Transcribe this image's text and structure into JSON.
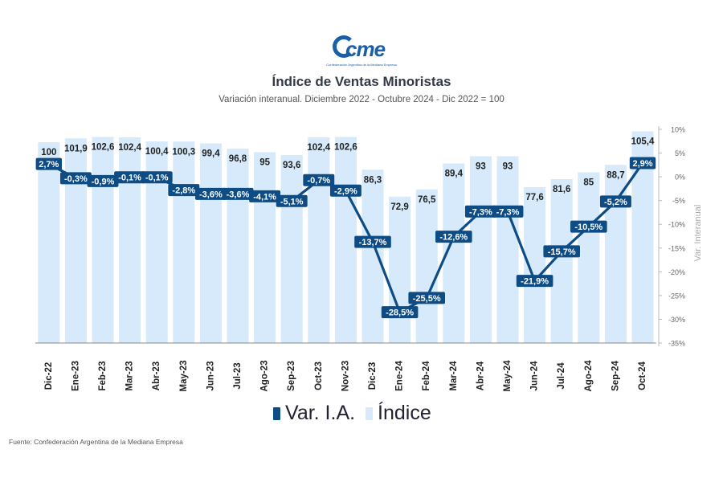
{
  "logo": {
    "word": "cme",
    "tagline": "Confederación Argentina de la Mediana Empresa"
  },
  "title": "Índice de Ventas Minoristas",
  "subtitle": "Variación interanual. Diciembre 2022 - Octubre 2024 - Dic 2022 = 100",
  "source": "Fuente: Confederación Argentina de la Mediana Empresa",
  "colors": {
    "bar": "#d6eafb",
    "line": "#0e4c86",
    "label_box": "#0e4c86",
    "text": "#222222"
  },
  "chart_data": {
    "type": "bar",
    "categories": [
      "Dic-22",
      "Ene-23",
      "Feb-23",
      "Mar-23",
      "Abr-23",
      "May-23",
      "Jun-23",
      "Jul-23",
      "Ago-23",
      "Sep-23",
      "Oct-23",
      "Nov-23",
      "Dic-23",
      "Ene-24",
      "Feb-24",
      "Mar-24",
      "Abr-24",
      "May-24",
      "Jun-24",
      "Jul-24",
      "Ago-24",
      "Sep-24",
      "Oct-24"
    ],
    "series": [
      {
        "name": "Índice",
        "type": "bar",
        "axis": "left",
        "values": [
          100,
          101.9,
          102.6,
          102.4,
          100.4,
          100.3,
          99.4,
          96.8,
          95,
          93.6,
          102.4,
          102.6,
          86.3,
          72.9,
          76.5,
          89.4,
          93,
          93,
          77.6,
          81.6,
          85,
          88.7,
          105.4
        ],
        "labels": [
          "100",
          "101,9",
          "102,6",
          "102,4",
          "100,4",
          "100,3",
          "99,4",
          "96,8",
          "95",
          "93,6",
          "102,4",
          "102,6",
          "86,3",
          "72,9",
          "76,5",
          "89,4",
          "93",
          "93",
          "77,6",
          "81,6",
          "85",
          "88,7",
          "105,4"
        ]
      },
      {
        "name": "Var. I.A.",
        "type": "line",
        "axis": "right",
        "values": [
          2.7,
          -0.3,
          -0.9,
          -0.1,
          -0.1,
          -2.8,
          -3.6,
          -3.6,
          -4.1,
          -5.1,
          -0.7,
          -2.9,
          -13.7,
          -28.5,
          -25.5,
          -12.6,
          -7.3,
          -7.3,
          -21.9,
          -15.7,
          -10.5,
          -5.2,
          2.9
        ],
        "labels": [
          "2,7%",
          "-0,3%",
          "-0,9%",
          "-0,1%",
          "-0,1%",
          "-2,8%",
          "-3,6%",
          "-3,6%",
          "-4,1%",
          "-5,1%",
          "-0,7%",
          "-2,9%",
          "-13,7%",
          "-28,5%",
          "-25,5%",
          "-12,6%",
          "-7,3%",
          "-7,3%",
          "-21,9%",
          "-15,7%",
          "-10,5%",
          "-5,2%",
          "2,9%"
        ]
      }
    ],
    "y_right": {
      "label": "Var. Interanual",
      "range": [
        -35,
        10
      ],
      "ticks": [
        10,
        5,
        0,
        -5,
        -10,
        -15,
        -20,
        -25,
        -30,
        -35
      ],
      "tick_labels": [
        "10%",
        "5%",
        "0%",
        "-5%",
        "-10%",
        "-15%",
        "-20%",
        "-25%",
        "-30%",
        "-35%"
      ]
    },
    "legend": {
      "placement": "bottom",
      "items": [
        "Var. I.A.",
        "Índice"
      ]
    },
    "grid": false
  }
}
